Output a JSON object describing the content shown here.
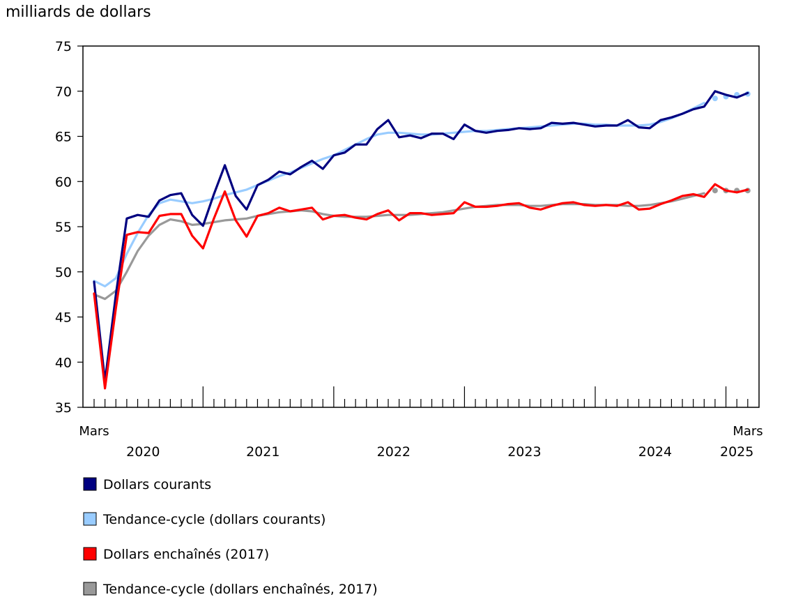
{
  "chart_data": {
    "type": "line",
    "y_unit_label": "milliards de dollars",
    "ylim": [
      35,
      75
    ],
    "y_ticks": [
      35,
      40,
      45,
      50,
      55,
      60,
      65,
      70,
      75
    ],
    "x_start": "2020-03",
    "x_end": "2025-03",
    "first_month_label": "Mars",
    "last_month_label": "Mars",
    "year_labels": [
      "2020",
      "2021",
      "2022",
      "2023",
      "2024",
      "2025"
    ],
    "series": [
      {
        "name": "Dollars courants",
        "color": "#000080",
        "style": "line",
        "start": "2020-03",
        "values": [
          48.9,
          37.9,
          47.5,
          55.9,
          56.3,
          56.1,
          57.9,
          58.5,
          58.7,
          56.3,
          55.1,
          58.6,
          61.8,
          58.4,
          56.9,
          59.6,
          60.2,
          61.1,
          60.8,
          61.6,
          62.3,
          61.4,
          62.9,
          63.2,
          64.1,
          64.1,
          65.8,
          66.8,
          64.9,
          65.1,
          64.8,
          65.3,
          65.3,
          64.7,
          66.3,
          65.6,
          65.4,
          65.6,
          65.7,
          65.9,
          65.8,
          65.9,
          66.5,
          66.4,
          66.5,
          66.3,
          66.1,
          66.2,
          66.2,
          66.8,
          66.0,
          65.9,
          66.8,
          67.1,
          67.5,
          68.0,
          68.3,
          70.0,
          69.6,
          69.3,
          69.8
        ]
      },
      {
        "name": "Tendance-cycle (dollars courants)",
        "color": "#99ccff",
        "style": "line",
        "start": "2020-03",
        "values": [
          49.0,
          48.4,
          49.3,
          52.0,
          54.3,
          56.3,
          57.6,
          58.0,
          57.8,
          57.6,
          57.8,
          58.1,
          58.5,
          58.8,
          59.1,
          59.6,
          60.1,
          60.6,
          61.0,
          61.5,
          62.0,
          62.5,
          62.9,
          63.5,
          64.1,
          64.7,
          65.2,
          65.4,
          65.4,
          65.3,
          65.2,
          65.2,
          65.3,
          65.4,
          65.5,
          65.6,
          65.6,
          65.7,
          65.8,
          65.9,
          66.0,
          66.1,
          66.2,
          66.3,
          66.4,
          66.4,
          66.3,
          66.3,
          66.2,
          66.2,
          66.2,
          66.3,
          66.6,
          67.0,
          67.5,
          68.1,
          68.7
        ]
      },
      {
        "name": "Tendance-cycle (dollars courants)",
        "color": "#99ccff",
        "style": "dots",
        "start": "2024-12",
        "values": [
          69.2,
          69.4,
          69.6,
          69.7
        ]
      },
      {
        "name": "Dollars enchaînés (2017)",
        "color": "#ff0000",
        "style": "line",
        "start": "2020-03",
        "values": [
          47.6,
          37.1,
          46.0,
          54.1,
          54.4,
          54.3,
          56.2,
          56.4,
          56.4,
          54.0,
          52.6,
          55.9,
          58.9,
          55.7,
          53.9,
          56.2,
          56.5,
          57.1,
          56.7,
          56.9,
          57.1,
          55.8,
          56.2,
          56.3,
          56.0,
          55.8,
          56.4,
          56.8,
          55.7,
          56.5,
          56.5,
          56.3,
          56.4,
          56.5,
          57.7,
          57.2,
          57.2,
          57.3,
          57.5,
          57.6,
          57.1,
          56.9,
          57.3,
          57.6,
          57.7,
          57.4,
          57.3,
          57.4,
          57.3,
          57.7,
          56.9,
          57.0,
          57.5,
          57.9,
          58.4,
          58.6,
          58.3,
          59.7,
          59.0,
          58.8,
          59.1
        ]
      },
      {
        "name": "Tendance-cycle (dollars enchaînés, 2017)",
        "color": "#999999",
        "style": "line",
        "start": "2020-03",
        "values": [
          47.5,
          47.0,
          47.9,
          50.0,
          52.3,
          54.0,
          55.2,
          55.8,
          55.6,
          55.2,
          55.3,
          55.5,
          55.7,
          55.8,
          55.9,
          56.2,
          56.4,
          56.6,
          56.7,
          56.8,
          56.7,
          56.4,
          56.2,
          56.1,
          56.1,
          56.1,
          56.2,
          56.3,
          56.3,
          56.3,
          56.4,
          56.5,
          56.6,
          56.8,
          57.0,
          57.2,
          57.3,
          57.4,
          57.4,
          57.4,
          57.3,
          57.3,
          57.4,
          57.5,
          57.5,
          57.5,
          57.4,
          57.4,
          57.4,
          57.3,
          57.3,
          57.4,
          57.6,
          57.8,
          58.1,
          58.4,
          58.7
        ]
      },
      {
        "name": "Tendance-cycle (dollars enchaînés, 2017)",
        "color": "#999999",
        "style": "dots",
        "start": "2024-12",
        "values": [
          59.0,
          59.0,
          59.0,
          59.0
        ]
      }
    ],
    "legend": [
      {
        "label": "Dollars courants",
        "color": "#000080"
      },
      {
        "label": "Tendance-cycle (dollars courants)",
        "color": "#99ccff"
      },
      {
        "label": "Dollars enchaînés (2017)",
        "color": "#ff0000"
      },
      {
        "label": "Tendance-cycle (dollars enchaînés, 2017)",
        "color": "#999999"
      }
    ],
    "legend_position": "bottom-left"
  }
}
